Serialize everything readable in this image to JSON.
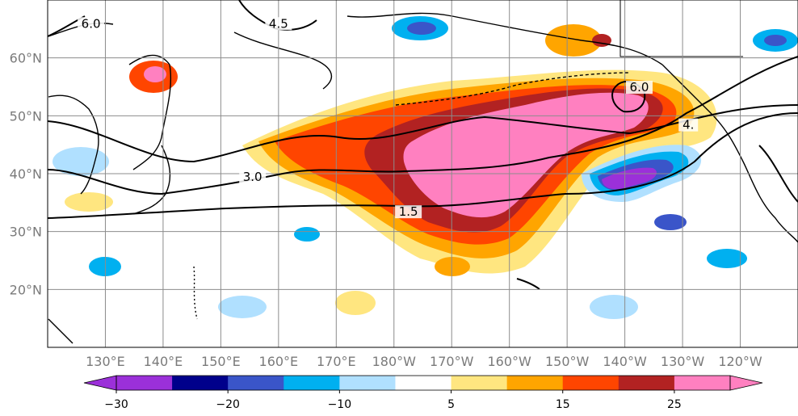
{
  "map": {
    "lat_labels": [
      "60°N",
      "50°N",
      "40°N",
      "30°N",
      "20°N"
    ],
    "lat_values": [
      60,
      50,
      40,
      30,
      20
    ],
    "lon_labels": [
      "130°E",
      "140°E",
      "150°E",
      "160°E",
      "170°E",
      "180°W",
      "170°W",
      "160°W",
      "150°W",
      "140°W",
      "130°W",
      "120°W"
    ],
    "lon_values": [
      130,
      140,
      150,
      160,
      170,
      180,
      190,
      200,
      210,
      220,
      230,
      240
    ],
    "extent": {
      "lon_min": 120,
      "lon_max": 250,
      "lat_min": 10,
      "lat_max": 70
    },
    "contour_labels": [
      {
        "text": "6.0",
        "lon": 127.5,
        "lat": 65.5
      },
      {
        "text": "4.5",
        "lon": 160.0,
        "lat": 65.5
      },
      {
        "text": "6.0",
        "lon": 222.5,
        "lat": 54.5
      },
      {
        "text": "4.",
        "lon": 231.0,
        "lat": 48.0
      },
      {
        "text": "3.0",
        "lon": 155.5,
        "lat": 39.0
      },
      {
        "text": "1.5",
        "lon": 182.5,
        "lat": 33.0
      }
    ],
    "colors": {
      "land_outline": "#000000",
      "gridline": "#8c8c8c",
      "contour": "#000000"
    }
  },
  "colorbar": {
    "levels": [
      -30,
      -25,
      -20,
      -15,
      -10,
      -5,
      5,
      10,
      15,
      20,
      25,
      30
    ],
    "colors": [
      "#9b30d9",
      "#00008b",
      "#3a55c9",
      "#00b0f0",
      "#b0e0ff",
      "#ffffff",
      "#ffe680",
      "#ffa500",
      "#ff4500",
      "#b22222",
      "#ff80c0"
    ],
    "extend_min_color": "#9b30d9",
    "extend_max_color": "#ff80c0",
    "tick_labels": [
      "−30",
      "−20",
      "−10",
      "5",
      "15",
      "25"
    ],
    "tick_values": [
      -30,
      -20,
      -10,
      5,
      15,
      25
    ]
  }
}
